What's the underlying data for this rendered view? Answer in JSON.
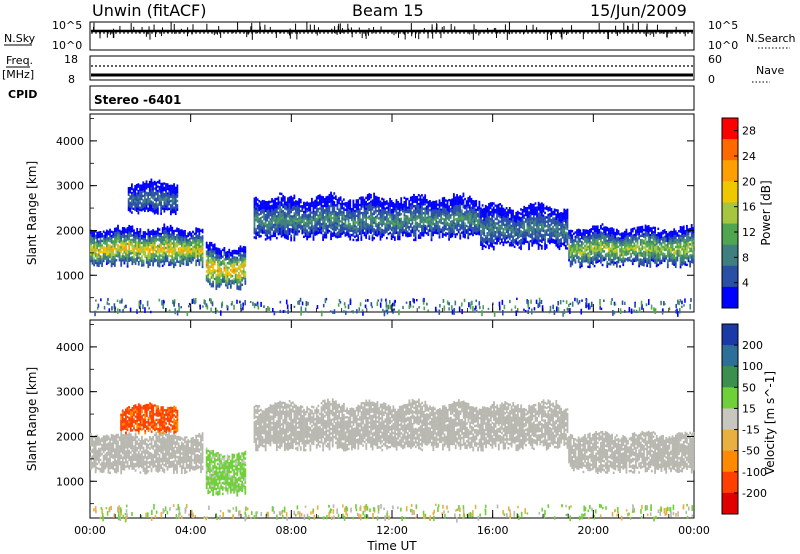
{
  "header": {
    "station": "Unwin (fitACF)",
    "beam": "Beam 15",
    "date": "15/Jun/2009"
  },
  "noise_panel": {
    "left_label": "N.Sky",
    "right_label": "N.Search",
    "left_ticks": [
      "10^5",
      "10^0"
    ],
    "right_ticks": [
      "10^5",
      "10^0"
    ]
  },
  "freq_panel": {
    "left_label_top": "Freq.",
    "left_label_bottom": "[MHz]",
    "left_ticks": [
      "18",
      "8"
    ],
    "right_label": "Nave",
    "right_ticks": [
      "60",
      "0"
    ],
    "cpid_label": "CPID",
    "mode_label": "Stereo -6401"
  },
  "colors": {
    "power_scale": [
      "#0000ff",
      "#2a50a6",
      "#3f7f7f",
      "#4fa64f",
      "#a6c63f",
      "#f0c800",
      "#ff9f00",
      "#ff6a00",
      "#ff0000"
    ],
    "velocity_scale": [
      "#1a3aa8",
      "#2e6f9a",
      "#3b9050",
      "#6fd03a",
      "#c7c7c0",
      "#e8b040",
      "#ff8a00",
      "#ff4000",
      "#e00000"
    ],
    "ground_scatter": "#b8b8b0"
  },
  "chart_data": [
    {
      "type": "heatmap",
      "name": "Power",
      "xlabel": "",
      "ylabel": "Slant Range [km]",
      "x_ticks": [
        "00:00",
        "04:00",
        "08:00",
        "12:00",
        "16:00",
        "20:00",
        "00:00"
      ],
      "x_range_hours": [
        0,
        24
      ],
      "y_ticks": [
        "1000",
        "2000",
        "3000",
        "4000"
      ],
      "y_range_km": [
        180,
        4600
      ],
      "colorbar_label": "Power [dB]",
      "colorbar_ticks": [
        "4",
        "8",
        "12",
        "16",
        "20",
        "24",
        "28"
      ],
      "colorbar_range": [
        0,
        30
      ],
      "echo_regions_hours_km": [
        {
          "t_start": 0.0,
          "t_end": 4.5,
          "r_low": 1100,
          "r_high": 2200,
          "peak_db": 20
        },
        {
          "t_start": 1.5,
          "t_end": 3.5,
          "r_low": 2300,
          "r_high": 3200,
          "peak_db": 8
        },
        {
          "t_start": 4.6,
          "t_end": 6.2,
          "r_low": 600,
          "r_high": 1800,
          "peak_db": 22
        },
        {
          "t_start": 6.5,
          "t_end": 15.5,
          "r_low": 1700,
          "r_high": 2900,
          "peak_db": 10
        },
        {
          "t_start": 15.5,
          "t_end": 19.0,
          "r_low": 1500,
          "r_high": 2700,
          "peak_db": 9
        },
        {
          "t_start": 19.0,
          "t_end": 24.0,
          "r_low": 1100,
          "r_high": 2200,
          "peak_db": 16
        }
      ]
    },
    {
      "type": "heatmap",
      "name": "Velocity",
      "xlabel": "Time UT",
      "ylabel": "Slant Range [km]",
      "x_ticks": [
        "00:00",
        "04:00",
        "08:00",
        "12:00",
        "16:00",
        "20:00",
        "00:00"
      ],
      "x_range_hours": [
        0,
        24
      ],
      "y_ticks": [
        "1000",
        "2000",
        "3000",
        "4000"
      ],
      "y_range_km": [
        180,
        4600
      ],
      "colorbar_label": "Velocity [m s^-1]",
      "colorbar_ticks": [
        "200",
        "100",
        "50",
        "15",
        "-15",
        "-50",
        "-100",
        "-200"
      ],
      "colorbar_range": [
        -250,
        250
      ],
      "echo_regions_hours_km": [
        {
          "t_start": 0.0,
          "t_end": 4.5,
          "r_low": 1100,
          "r_high": 2200,
          "velocity": 0
        },
        {
          "t_start": 1.2,
          "t_end": 3.5,
          "r_low": 2000,
          "r_high": 2800,
          "velocity": -150
        },
        {
          "t_start": 4.6,
          "t_end": 6.2,
          "r_low": 600,
          "r_high": 1800,
          "velocity": 40
        },
        {
          "t_start": 6.5,
          "t_end": 19.0,
          "r_low": 1600,
          "r_high": 2900,
          "velocity": 0
        },
        {
          "t_start": 19.0,
          "t_end": 24.0,
          "r_low": 1100,
          "r_high": 2200,
          "velocity": 0
        }
      ]
    }
  ]
}
